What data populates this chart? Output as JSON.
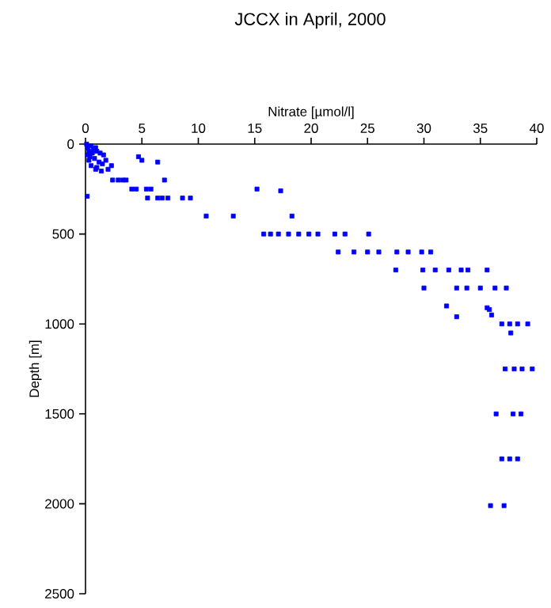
{
  "chart_data": {
    "type": "scatter",
    "title": "JCCX in April, 2000",
    "xlabel": "Nitrate [µmol/l]",
    "ylabel": "Depth [m]",
    "xlim": [
      0,
      40
    ],
    "ylim": [
      2500,
      0
    ],
    "xticks": [
      0,
      5,
      10,
      15,
      20,
      25,
      30,
      35,
      40
    ],
    "yticks": [
      0,
      500,
      1000,
      1500,
      2000,
      2500
    ],
    "marker": "square",
    "grid": false,
    "series": [
      {
        "color": "#0000ff",
        "x": [
          0.1,
          0.2,
          0.3,
          0.5,
          0.7,
          0.9,
          0.2,
          0.4,
          0.6,
          1.0,
          1.3,
          1.6,
          0.3,
          0.8,
          1.2,
          1.8,
          0.5,
          1.0,
          1.5,
          2.0,
          0.9,
          1.4,
          2.3,
          0.15,
          4.7,
          5.0,
          6.4,
          2.4,
          2.9,
          3.3,
          3.6,
          7.0,
          4.1,
          4.5,
          5.4,
          5.8,
          5.5,
          6.4,
          6.8,
          7.3,
          8.6,
          9.3,
          15.2,
          17.3,
          10.7,
          13.1,
          18.3,
          15.8,
          16.4,
          17.1,
          18.0,
          18.9,
          19.8,
          20.6,
          22.1,
          23.0,
          25.1,
          22.4,
          23.8,
          25.0,
          26.0,
          27.6,
          28.6,
          29.8,
          30.6,
          27.5,
          29.9,
          31.0,
          32.2,
          33.3,
          33.9,
          35.6,
          30.0,
          32.9,
          33.8,
          35.0,
          36.3,
          37.3,
          32.0,
          35.6,
          35.8,
          36.0,
          32.9,
          36.9,
          37.6,
          38.3,
          39.2,
          37.7,
          37.2,
          38.0,
          38.7,
          39.6,
          36.4,
          37.9,
          38.6,
          36.9,
          37.6,
          38.3,
          35.9,
          37.1
        ],
        "values": [
          0,
          20,
          40,
          10,
          30,
          20,
          60,
          70,
          50,
          40,
          50,
          60,
          90,
          80,
          100,
          90,
          120,
          130,
          110,
          140,
          140,
          150,
          120,
          290,
          70,
          90,
          100,
          200,
          200,
          200,
          200,
          200,
          250,
          250,
          250,
          250,
          300,
          300,
          300,
          300,
          300,
          300,
          250,
          260,
          400,
          400,
          400,
          500,
          500,
          500,
          500,
          500,
          500,
          500,
          500,
          500,
          500,
          600,
          600,
          600,
          600,
          600,
          600,
          600,
          600,
          700,
          700,
          700,
          700,
          700,
          700,
          700,
          800,
          800,
          800,
          800,
          800,
          800,
          900,
          910,
          920,
          950,
          960,
          1000,
          1000,
          1000,
          1000,
          1050,
          1250,
          1250,
          1250,
          1250,
          1500,
          1500,
          1500,
          1750,
          1750,
          1750,
          2010,
          2010
        ]
      }
    ]
  }
}
